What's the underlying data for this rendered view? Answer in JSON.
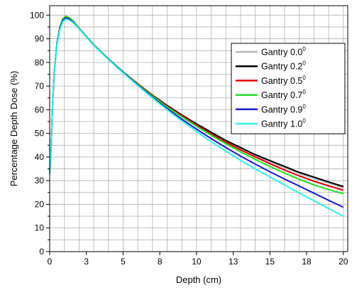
{
  "chart_data": {
    "type": "line",
    "title": "",
    "xlabel": "Depth (cm)",
    "ylabel": "Percentage Depth Dose (%)",
    "xlim": [
      0,
      20.3
    ],
    "ylim": [
      0,
      104
    ],
    "x_ticks": [
      0,
      2.5,
      5,
      7.5,
      10,
      12.5,
      15,
      17.5,
      20
    ],
    "x_tick_labels": [
      "0",
      "3",
      "5",
      "8",
      "10",
      "13",
      "15",
      "18",
      "20"
    ],
    "y_ticks": [
      0,
      10,
      20,
      30,
      40,
      50,
      60,
      70,
      80,
      90,
      100
    ],
    "y_tick_labels": [
      "0",
      "10",
      "20",
      "30",
      "40",
      "50",
      "60",
      "70",
      "80",
      "90",
      "100"
    ],
    "grid": true,
    "legend_position": "right",
    "series": [
      {
        "name": "Gantry 0.0",
        "superscript": "0",
        "color": "#b4b4b4",
        "x": [
          0,
          0.1,
          0.2,
          0.3,
          0.5,
          0.7,
          0.9,
          1.1,
          1.3,
          1.6,
          2,
          2.5,
          3,
          4,
          5,
          6,
          7,
          8,
          9,
          10,
          11,
          12,
          13,
          14,
          15,
          16,
          17,
          18,
          19,
          20
        ],
        "y": [
          33,
          45,
          62,
          75,
          88,
          95,
          98.5,
          99.5,
          99,
          97.5,
          94.5,
          91,
          87.5,
          81.5,
          76,
          71,
          66,
          61.5,
          57.5,
          53.5,
          50,
          46.5,
          43.5,
          40.5,
          38,
          35.5,
          33,
          31,
          29,
          27
        ]
      },
      {
        "name": "Gantry 0.2",
        "superscript": "0",
        "color": "#000000",
        "x": [
          0,
          0.1,
          0.2,
          0.3,
          0.5,
          0.7,
          0.9,
          1.1,
          1.3,
          1.6,
          2,
          2.5,
          3,
          4,
          5,
          6,
          7,
          8,
          9,
          10,
          11,
          12,
          13,
          14,
          15,
          16,
          17,
          18,
          19,
          20
        ],
        "y": [
          33,
          45,
          62,
          75,
          88,
          95,
          98.5,
          99.5,
          99,
          97.5,
          94.5,
          91,
          87.5,
          81.5,
          76,
          71,
          66.2,
          61.8,
          57.8,
          54,
          50.5,
          47,
          44,
          41,
          38.5,
          36,
          33.5,
          31.5,
          29.5,
          27.5
        ]
      },
      {
        "name": "Gantry 0.5",
        "superscript": "0",
        "color": "#e00000",
        "x": [
          0,
          0.1,
          0.2,
          0.3,
          0.5,
          0.7,
          0.9,
          1.1,
          1.3,
          1.6,
          2,
          2.5,
          3,
          4,
          5,
          6,
          7,
          8,
          9,
          10,
          11,
          12,
          13,
          14,
          15,
          16,
          17,
          18,
          19,
          20
        ],
        "y": [
          33,
          45,
          62,
          75,
          88,
          95,
          98.5,
          99.5,
          99,
          97.5,
          94.5,
          91,
          87.5,
          81.5,
          76,
          71,
          66,
          61.5,
          57.5,
          53.5,
          49.8,
          46.3,
          43,
          40,
          37.2,
          34.5,
          32,
          29.8,
          27.8,
          26
        ]
      },
      {
        "name": "Gantry 0.7",
        "superscript": "0",
        "color": "#22dd22",
        "x": [
          0,
          0.1,
          0.2,
          0.3,
          0.5,
          0.7,
          0.9,
          1.1,
          1.3,
          1.6,
          2,
          2.5,
          3,
          4,
          5,
          6,
          7,
          8,
          9,
          10,
          11,
          12,
          13,
          14,
          15,
          16,
          17,
          18,
          19,
          20
        ],
        "y": [
          33,
          45,
          62,
          75,
          88,
          95,
          98.5,
          99.5,
          99,
          97.5,
          94.5,
          91,
          87.5,
          81.5,
          76,
          70.8,
          65.8,
          61.2,
          57,
          53,
          49.2,
          45.6,
          42.2,
          39,
          36,
          33.2,
          30.6,
          28.2,
          26.2,
          24.5
        ]
      },
      {
        "name": "Gantry 0.9",
        "superscript": "0",
        "color": "#1a1acc",
        "x": [
          0,
          0.1,
          0.2,
          0.3,
          0.5,
          0.7,
          0.9,
          1.1,
          1.3,
          1.6,
          2,
          2.5,
          3,
          4,
          5,
          6,
          7,
          8,
          9,
          10,
          11,
          12,
          13,
          14,
          15,
          16,
          17,
          18,
          19,
          20
        ],
        "y": [
          33,
          45,
          62,
          75,
          88,
          94.5,
          97.8,
          98.8,
          98.5,
          97,
          94.3,
          90.8,
          87.3,
          81.3,
          75.8,
          70.5,
          65.3,
          60.5,
          56,
          51.8,
          47.8,
          44,
          40.4,
          37,
          33.8,
          30.7,
          27.7,
          24.7,
          21.7,
          18.8
        ]
      },
      {
        "name": "Gantry 1.0",
        "superscript": "0",
        "color": "#33eeee",
        "x": [
          0,
          0.1,
          0.2,
          0.3,
          0.5,
          0.7,
          0.9,
          1.1,
          1.3,
          1.6,
          2,
          2.5,
          3,
          4,
          5,
          6,
          7,
          8,
          9,
          10,
          11,
          12,
          13,
          14,
          15,
          16,
          17,
          18,
          19,
          20
        ],
        "y": [
          33,
          45,
          62,
          75,
          87.5,
          94,
          97.3,
          98.3,
          98,
          96.8,
          94.2,
          90.7,
          87.2,
          81.2,
          75.6,
          70.2,
          65,
          60,
          55.3,
          50.8,
          46.5,
          42.5,
          38.6,
          35,
          31.6,
          28.2,
          24.8,
          21.5,
          18.2,
          15
        ]
      }
    ]
  }
}
